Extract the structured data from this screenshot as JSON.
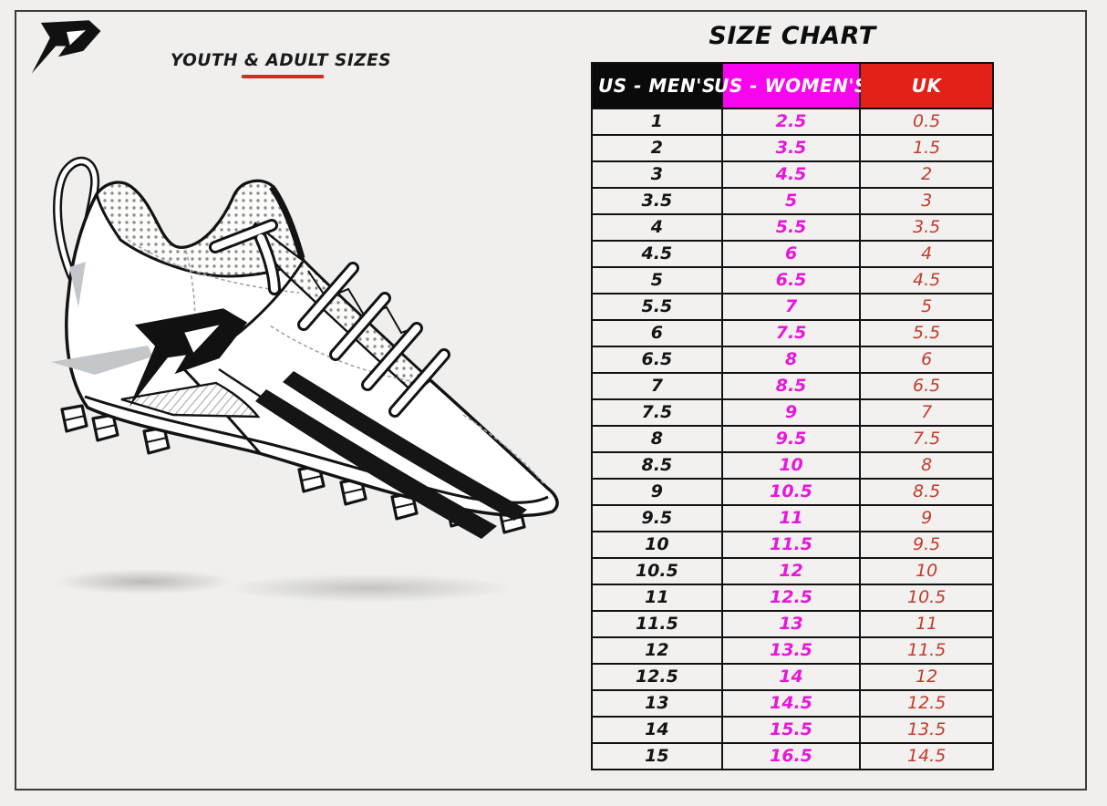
{
  "branding": {
    "logo": "phenom-arrow-p-logo",
    "subtitle": "YOUTH & ADULT SIZES"
  },
  "illustration": {
    "alt": "football cleat line drawing with brand logo, laces, cleat studs and soft shadow"
  },
  "colors": {
    "paper": "#f0efed",
    "accent-red": "#d62b27",
    "mens-bg": "#0a0a0a",
    "womens-bg": "#f705ec",
    "uk-bg": "#e32119",
    "header-text": "#ffffff",
    "mens-val": "#141414",
    "womens-val": "#e816dc",
    "uk-val": "#c23b2c"
  },
  "chart_data": {
    "type": "table",
    "title": "SIZE CHART",
    "columns": [
      "US - MEN'S",
      "US - WOMEN'S",
      "UK"
    ],
    "rows": [
      [
        "1",
        "2.5",
        "0.5"
      ],
      [
        "2",
        "3.5",
        "1.5"
      ],
      [
        "3",
        "4.5",
        "2"
      ],
      [
        "3.5",
        "5",
        "3"
      ],
      [
        "4",
        "5.5",
        "3.5"
      ],
      [
        "4.5",
        "6",
        "4"
      ],
      [
        "5",
        "6.5",
        "4.5"
      ],
      [
        "5.5",
        "7",
        "5"
      ],
      [
        "6",
        "7.5",
        "5.5"
      ],
      [
        "6.5",
        "8",
        "6"
      ],
      [
        "7",
        "8.5",
        "6.5"
      ],
      [
        "7.5",
        "9",
        "7"
      ],
      [
        "8",
        "9.5",
        "7.5"
      ],
      [
        "8.5",
        "10",
        "8"
      ],
      [
        "9",
        "10.5",
        "8.5"
      ],
      [
        "9.5",
        "11",
        "9"
      ],
      [
        "10",
        "11.5",
        "9.5"
      ],
      [
        "10.5",
        "12",
        "10"
      ],
      [
        "11",
        "12.5",
        "10.5"
      ],
      [
        "11.5",
        "13",
        "11"
      ],
      [
        "12",
        "13.5",
        "11.5"
      ],
      [
        "12.5",
        "14",
        "12"
      ],
      [
        "13",
        "14.5",
        "12.5"
      ],
      [
        "14",
        "15.5",
        "13.5"
      ],
      [
        "15",
        "16.5",
        "14.5"
      ]
    ]
  }
}
